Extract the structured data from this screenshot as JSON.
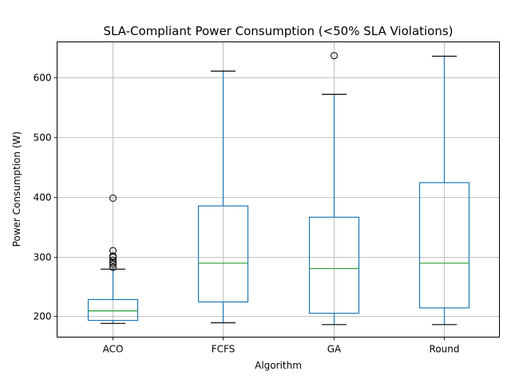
{
  "chart_data": {
    "type": "box",
    "title": "SLA-Compliant Power Consumption (<50% SLA Violations)",
    "xlabel": "Algorithm",
    "ylabel": "Power Consumption (W)",
    "ylim": [
      165,
      660
    ],
    "yticks": [
      200,
      300,
      400,
      500,
      600
    ],
    "grid": true,
    "colors": {
      "box": "#1f77b4",
      "median": "#2ca02c",
      "whisker_cap": "#000000",
      "grid": "#b0b0b0"
    },
    "categories": [
      "ACO",
      "FCFS",
      "GA",
      "Round"
    ],
    "boxes": [
      {
        "name": "ACO",
        "whislo": 188,
        "q1": 193,
        "med": 209,
        "q3": 228,
        "whishi": 279,
        "fliers": [
          282,
          287,
          290,
          294,
          299,
          301,
          310,
          398
        ]
      },
      {
        "name": "FCFS",
        "whislo": 189,
        "q1": 224,
        "med": 289,
        "q3": 385,
        "whishi": 611,
        "fliers": []
      },
      {
        "name": "GA",
        "whislo": 186,
        "q1": 205,
        "med": 280,
        "q3": 366,
        "whishi": 572,
        "fliers": [
          637
        ]
      },
      {
        "name": "Round",
        "whislo": 186,
        "q1": 214,
        "med": 289,
        "q3": 424,
        "whishi": 636,
        "fliers": []
      }
    ]
  }
}
